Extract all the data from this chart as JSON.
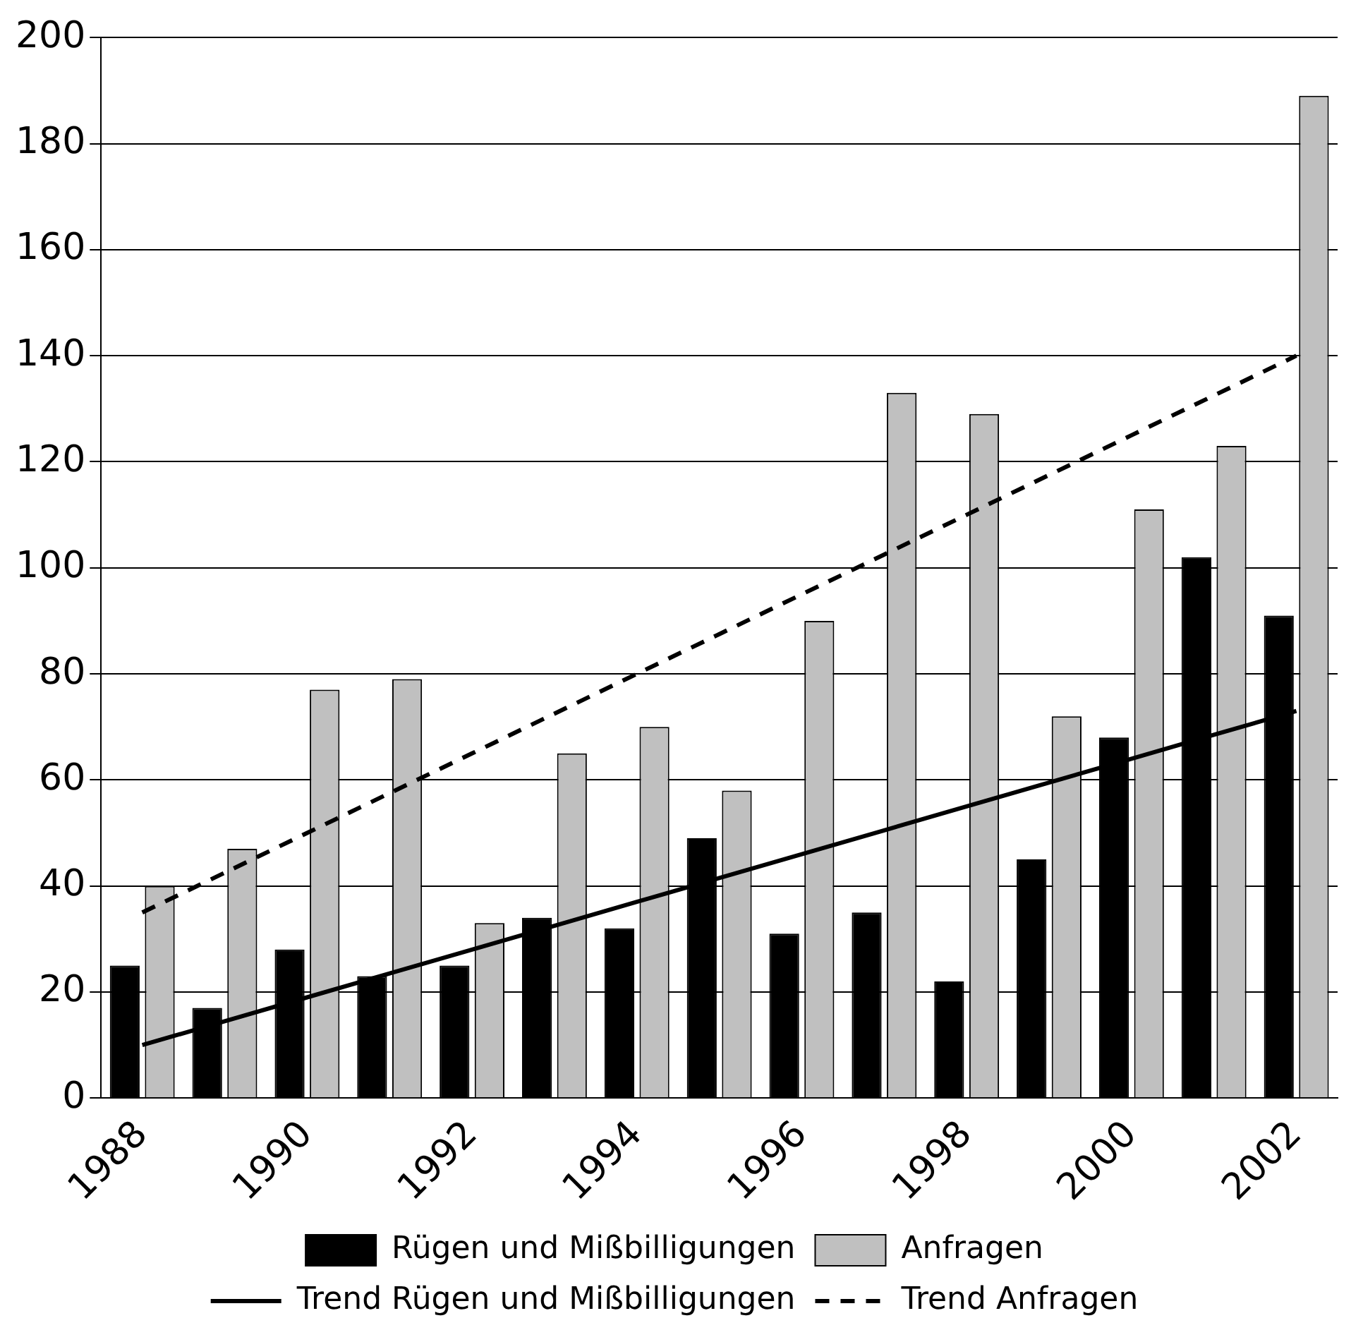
{
  "chart_data": {
    "type": "bar",
    "categories": [
      "1988",
      null,
      "1990",
      null,
      "1992",
      null,
      "1994",
      null,
      "1996",
      null,
      "1998",
      null,
      "2000",
      null,
      "2002"
    ],
    "series": [
      {
        "name": "Rügen und Mißbilligungen",
        "color": "#000000",
        "values": [
          25,
          17,
          28,
          23,
          25,
          34,
          32,
          49,
          31,
          35,
          22,
          45,
          68,
          102,
          91
        ]
      },
      {
        "name": "Anfragen",
        "color": "#c0c0c0",
        "values": [
          40,
          47,
          77,
          79,
          33,
          65,
          70,
          58,
          90,
          133,
          129,
          72,
          111,
          123,
          189
        ]
      },
      {
        "name": "Trend Rügen und Mißbilligungen",
        "type": "line",
        "color": "#000000",
        "line_style": "solid",
        "values": [
          10,
          14.5,
          19,
          23.5,
          28,
          32.5,
          37,
          41.5,
          46,
          50.5,
          55,
          59.5,
          64,
          68.5,
          73
        ]
      },
      {
        "name": "Trend Anfragen",
        "type": "line",
        "color": "#000000",
        "line_style": "dashed",
        "values": [
          35,
          42.5,
          50,
          57.5,
          65,
          72.5,
          80,
          87.5,
          95,
          102.5,
          110,
          117.5,
          125,
          132.5,
          140
        ]
      }
    ],
    "ylim": [
      0,
      200
    ],
    "yticks": [
      0,
      20,
      40,
      60,
      80,
      100,
      120,
      140,
      160,
      180,
      200
    ],
    "grid": "y",
    "legend": "bottom",
    "marker": "none"
  }
}
